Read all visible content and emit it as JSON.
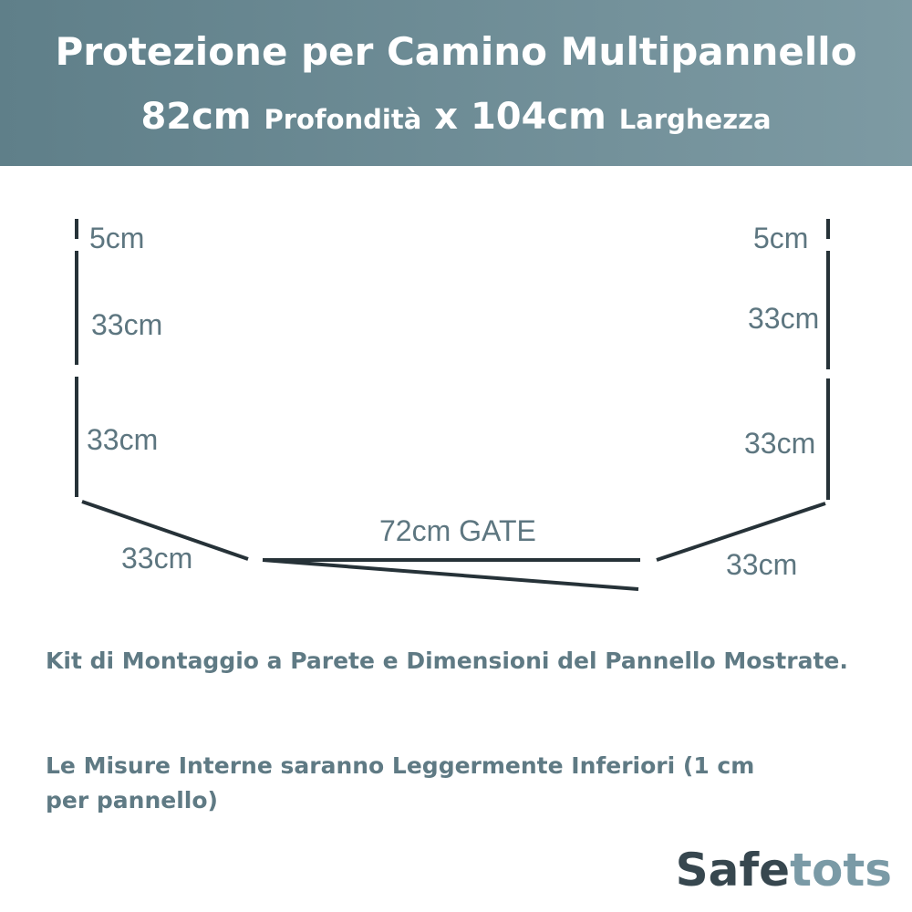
{
  "header": {
    "title": "Protezione per Camino Multipannello",
    "subtitle_parts": [
      "82cm",
      "Profondità",
      "x",
      "104cm",
      "Larghezza"
    ]
  },
  "diagram": {
    "left_labels": [
      "5cm",
      "33cm",
      "33cm",
      "33cm"
    ],
    "right_labels": [
      "5cm",
      "33cm",
      "33cm",
      "33cm"
    ],
    "gate_label": "72cm GATE"
  },
  "notes": [
    "Kit di Montaggio a Parete e Dimensioni del Pannello Mostrate.",
    "Le Misure Interne saranno Leggermente Inferiori (1 cm per pannello)"
  ],
  "brand": {
    "part1": "Safe",
    "part2": "tots"
  }
}
